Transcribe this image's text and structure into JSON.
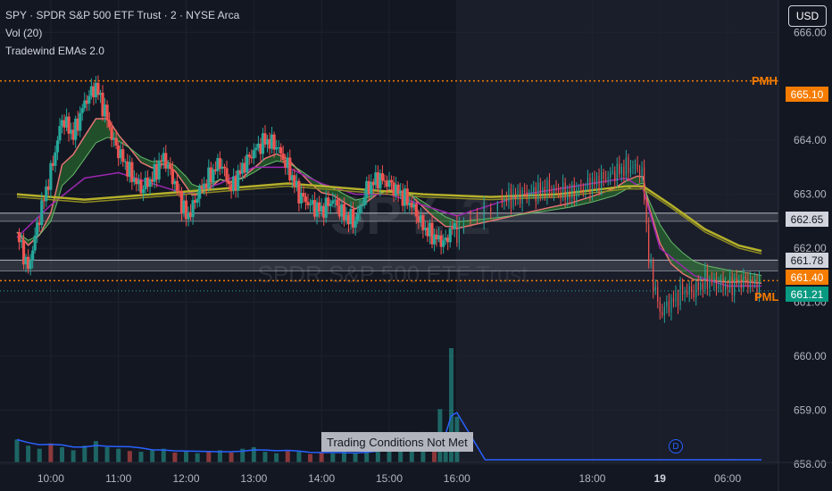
{
  "header": {
    "symbol_line": "SPY · SPDR S&P 500 ETF Trust · 2 · NYSE Arca",
    "volume_indicator": "Vol (20)",
    "ema_indicator": "Tradewind EMAs 2.0"
  },
  "currency_button": "USD",
  "watermark": {
    "ticker": "SPY, 2",
    "name": "SPDR S&P 500 ETF Trust"
  },
  "price_axis": {
    "ticks": [
      "666.00",
      "664.00",
      "663.00",
      "662.00",
      "661.00",
      "660.00",
      "659.00",
      "658.00"
    ],
    "tag_values": [
      665.1,
      662.65,
      661.78,
      661.4,
      661.21,
      666.0,
      664.0,
      663.0,
      662.0,
      661.0,
      660.0,
      659.0,
      658.0
    ]
  },
  "time_axis": {
    "ticks": [
      "10:00",
      "11:00",
      "12:00",
      "13:00",
      "14:00",
      "15:00",
      "16:00",
      "18:00",
      "19",
      "06:00"
    ],
    "values_minutes": [
      600,
      660,
      720,
      780,
      840,
      900,
      960,
      1080,
      1140,
      1200
    ]
  },
  "price_tags": {
    "pmh": {
      "value": "665.10",
      "color": "#f57c00"
    },
    "zone_top": {
      "value": "662.65",
      "color": "#b2b5be"
    },
    "zone_bottom": {
      "value": "661.78",
      "color": "#b2b5be"
    },
    "pml": {
      "value": "661.40",
      "color": "#f57c00"
    },
    "last": {
      "value": "661.21",
      "color": "#089981"
    }
  },
  "levels": {
    "pmh_label": "PMH",
    "pml_label": "PML"
  },
  "trading_badge": "Trading Conditions Not Met",
  "dividend_marker": "D",
  "colors": {
    "background": "#131722",
    "session_shade": "#1a1e2b",
    "up": "#26a69a",
    "down": "#ef5350",
    "ema_fast": "#e57373",
    "ema_band_fill": "#2e7d32",
    "ema_purple": "#9c27b0",
    "ema_olive": "#b5b02a",
    "premarket_level": "#f57c00",
    "zone_line": "#b2b5be",
    "volume_ma": "#2962ff"
  },
  "chart_data": {
    "type": "line",
    "title": "SPY · SPDR S&P 500 ETF Trust · 2 · NYSE Arca",
    "xlabel": "",
    "ylabel": "",
    "ylim": [
      657.8,
      666.6
    ],
    "x_unit": "minutes since 00:00 (day 1), continuing past midnight",
    "reference_lines": [
      {
        "name": "PMH",
        "value": 665.1
      },
      {
        "name": "PML",
        "value": 661.4
      }
    ],
    "zones": [
      {
        "top": 662.65,
        "bottom": 662.5
      },
      {
        "top": 661.78,
        "bottom": 661.58
      }
    ],
    "series": [
      {
        "name": "price",
        "x": [
          570,
          580,
          590,
          600,
          605,
          610,
          620,
          630,
          640,
          650,
          655,
          660,
          670,
          680,
          690,
          700,
          710,
          720,
          725,
          730,
          740,
          750,
          760,
          770,
          780,
          790,
          800,
          810,
          820,
          830,
          840,
          850,
          860,
          870,
          880,
          890,
          900,
          910,
          920,
          930,
          940,
          950,
          955,
          960,
          1000,
          1040,
          1060,
          1080,
          1100,
          1110,
          1120,
          1125,
          1130,
          1140,
          1150,
          1160,
          1170,
          1180,
          1200,
          1215,
          1230
        ],
        "values": [
          662.3,
          661.6,
          662.6,
          663.4,
          663.9,
          664.4,
          664.1,
          664.7,
          665.0,
          664.4,
          664.0,
          663.8,
          663.4,
          663.1,
          663.3,
          663.7,
          663.2,
          662.6,
          662.7,
          663.0,
          663.3,
          663.6,
          663.1,
          663.5,
          663.8,
          664.0,
          663.9,
          663.5,
          663.0,
          662.8,
          662.7,
          662.9,
          662.6,
          662.5,
          663.1,
          663.3,
          663.2,
          663.0,
          662.8,
          662.4,
          662.2,
          662.1,
          662.4,
          662.3,
          662.9,
          663.1,
          663.0,
          663.2,
          663.4,
          663.5,
          663.5,
          663.3,
          661.8,
          660.8,
          661.0,
          661.2,
          661.2,
          661.4,
          661.3,
          661.4,
          661.3
        ]
      },
      {
        "name": "ema_purple",
        "x": [
          570,
          600,
          630,
          660,
          690,
          720,
          750,
          780,
          810,
          840,
          870,
          900,
          930,
          960,
          1020,
          1080,
          1110,
          1125,
          1140,
          1170,
          1200,
          1230
        ],
        "values": [
          662.2,
          662.8,
          663.3,
          663.4,
          663.2,
          663.0,
          663.2,
          663.5,
          663.5,
          663.2,
          663.0,
          663.0,
          662.8,
          662.6,
          663.0,
          663.2,
          663.3,
          663.1,
          662.0,
          661.5,
          661.3,
          661.3
        ]
      },
      {
        "name": "ema_olive",
        "x": [
          570,
          630,
          690,
          750,
          810,
          870,
          930,
          990,
          1050,
          1110,
          1125,
          1150,
          1180,
          1210,
          1230
        ],
        "values": [
          663.0,
          662.9,
          663.0,
          663.1,
          663.2,
          663.1,
          663.0,
          662.95,
          663.0,
          663.15,
          663.15,
          662.8,
          662.35,
          662.05,
          661.95
        ]
      }
    ],
    "volume": {
      "x": [
        570,
        580,
        590,
        600,
        610,
        620,
        630,
        640,
        650,
        660,
        670,
        680,
        690,
        700,
        710,
        720,
        730,
        740,
        750,
        760,
        770,
        780,
        790,
        800,
        810,
        820,
        830,
        840,
        850,
        860,
        870,
        880,
        890,
        900,
        910,
        920,
        930,
        940,
        945,
        950,
        955,
        960
      ],
      "values": [
        30,
        22,
        18,
        25,
        20,
        16,
        22,
        28,
        20,
        18,
        15,
        14,
        16,
        18,
        13,
        14,
        12,
        15,
        16,
        13,
        18,
        20,
        14,
        12,
        15,
        14,
        11,
        13,
        12,
        14,
        12,
        16,
        20,
        18,
        22,
        30,
        40,
        25,
        70,
        22,
        150,
        60
      ]
    }
  }
}
